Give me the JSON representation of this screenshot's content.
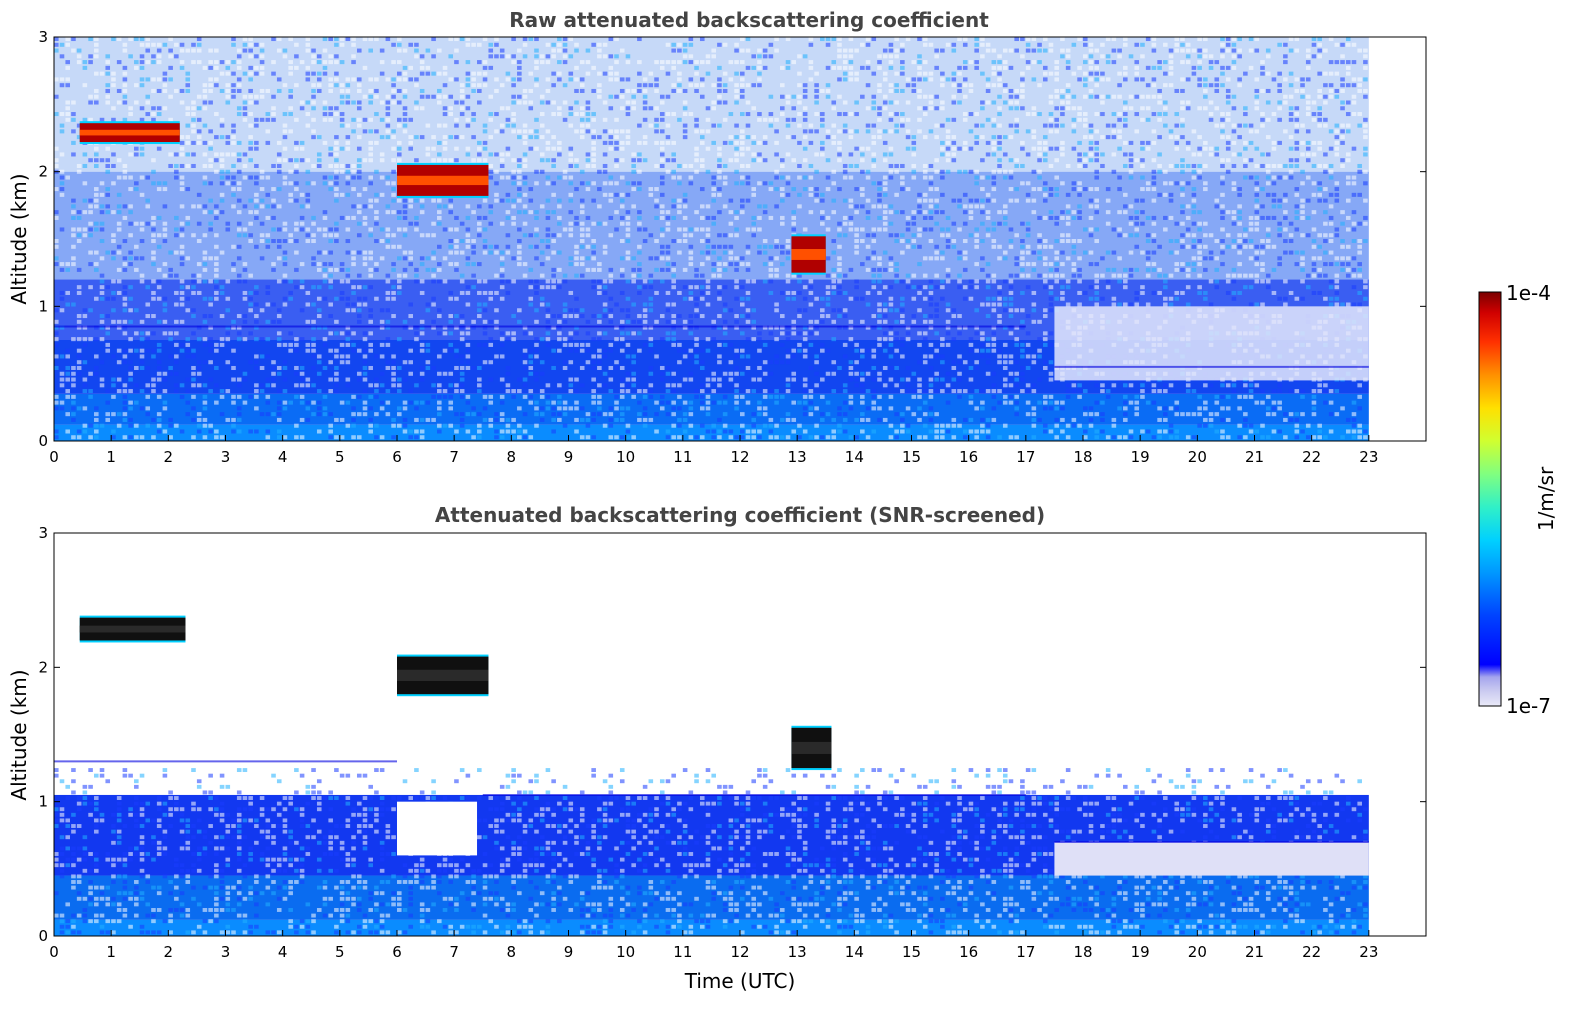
{
  "chart_data": [
    {
      "type": "heatmap",
      "title": "Raw attenuated backscattering coefficient",
      "xlabel": "",
      "ylabel": "Altitude (km)",
      "xlim": [
        0,
        24
      ],
      "ylim": [
        0,
        3
      ],
      "x_ticks": [
        "0",
        "1",
        "2",
        "3",
        "4",
        "5",
        "6",
        "7",
        "8",
        "9",
        "10",
        "11",
        "12",
        "13",
        "14",
        "15",
        "16",
        "17",
        "18",
        "19",
        "20",
        "21",
        "22",
        "23"
      ],
      "y_ticks": [
        "0",
        "1",
        "2",
        "3"
      ],
      "data_time_range": [
        0,
        23
      ],
      "grid": false,
      "features": [
        {
          "kind": "cloud_layer",
          "time": [
            0.45,
            2.2
          ],
          "altitude_km": [
            2.22,
            2.36
          ]
        },
        {
          "kind": "cloud_layer",
          "time": [
            6.0,
            7.6
          ],
          "altitude_km": [
            1.82,
            2.05
          ]
        },
        {
          "kind": "cloud_layer",
          "time": [
            12.9,
            13.5
          ],
          "altitude_km": [
            1.25,
            1.52
          ]
        },
        {
          "kind": "boundary_layer_top",
          "time": [
            0,
            17
          ],
          "altitude_km": [
            0.55,
            0.85
          ]
        },
        {
          "kind": "boundary_layer_top",
          "time": [
            17.5,
            23
          ],
          "altitude_km": [
            0.3,
            0.55
          ]
        }
      ]
    },
    {
      "type": "heatmap",
      "title": "Attenuated backscattering coefficient (SNR-screened)",
      "xlabel": "Time (UTC)",
      "ylabel": "Altitude (km)",
      "xlim": [
        0,
        24
      ],
      "ylim": [
        0,
        3
      ],
      "x_ticks": [
        "0",
        "1",
        "2",
        "3",
        "4",
        "5",
        "6",
        "7",
        "8",
        "9",
        "10",
        "11",
        "12",
        "13",
        "14",
        "15",
        "16",
        "17",
        "18",
        "19",
        "20",
        "21",
        "22",
        "23"
      ],
      "y_ticks": [
        "0",
        "1",
        "2",
        "3"
      ],
      "data_time_range": [
        0,
        23
      ],
      "grid": false,
      "features": [
        {
          "kind": "cloud_layer",
          "time": [
            0.45,
            2.3
          ],
          "altitude_km": [
            2.2,
            2.37
          ]
        },
        {
          "kind": "cloud_layer",
          "time": [
            6.0,
            7.6
          ],
          "altitude_km": [
            1.8,
            2.08
          ]
        },
        {
          "kind": "cloud_layer",
          "time": [
            12.9,
            13.6
          ],
          "altitude_km": [
            1.25,
            1.55
          ]
        },
        {
          "kind": "screened_layer_top",
          "time": [
            0,
            6
          ],
          "altitude_km": [
            1.1,
            1.3
          ]
        },
        {
          "kind": "screened_layer_top",
          "time": [
            7.5,
            17
          ],
          "altitude_km": [
            0.8,
            1.05
          ]
        },
        {
          "kind": "screened_layer_top",
          "time": [
            17.5,
            23
          ],
          "altitude_km": [
            0.4,
            0.7
          ]
        }
      ]
    }
  ],
  "colorbar": {
    "label": "1/m/sr",
    "max_label": "1e-4",
    "min_label": "1e-7",
    "scale": "log",
    "range": [
      1e-07,
      0.0001
    ],
    "colormap": "jet-like with light lavender low end",
    "colors": [
      "#e8e8f7",
      "#c8c8f0",
      "#a8a8ee",
      "#0000ff",
      "#0070ff",
      "#00c8ff",
      "#40f0c0",
      "#b0ff50",
      "#ffee00",
      "#ff9000",
      "#ff2000",
      "#c00000",
      "#800000"
    ]
  }
}
